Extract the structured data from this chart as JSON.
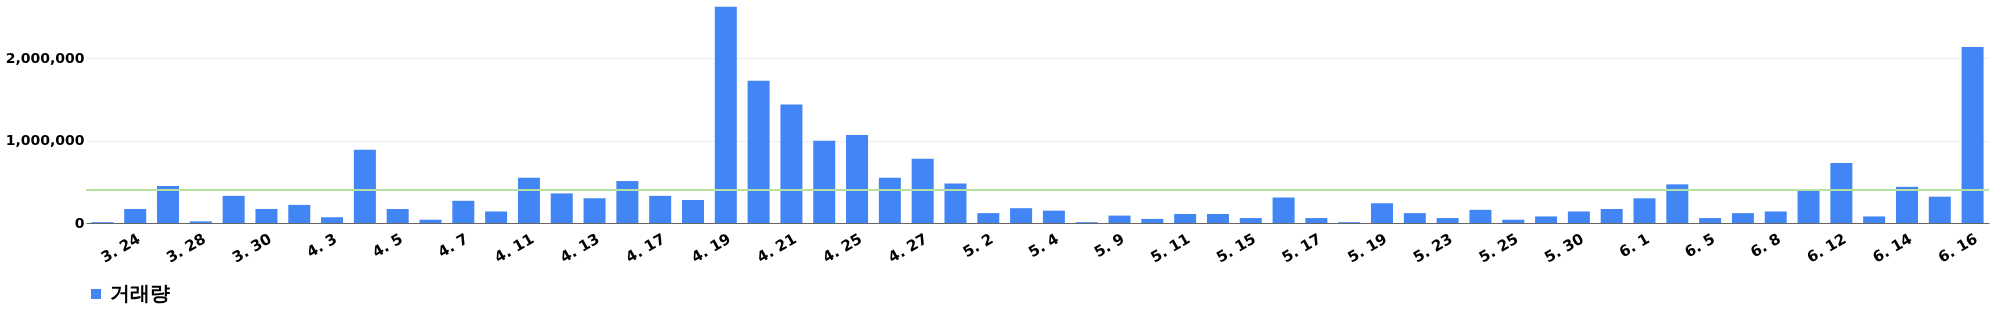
{
  "chart_data": {
    "type": "bar",
    "categories": [
      null,
      "3. 24",
      null,
      "3. 28",
      null,
      "3. 30",
      null,
      "4. 3",
      null,
      "4. 5",
      null,
      "4. 7",
      null,
      "4. 11",
      null,
      "4. 13",
      null,
      "4. 17",
      null,
      "4. 19",
      null,
      "4. 21",
      null,
      "4. 25",
      null,
      "4. 27",
      null,
      "5. 2",
      null,
      "5. 4",
      null,
      "5. 9",
      null,
      "5. 11",
      null,
      "5. 15",
      null,
      "5. 17",
      null,
      "5. 19",
      null,
      "5. 23",
      null,
      "5. 25",
      null,
      "5. 30",
      null,
      "6. 1",
      null,
      "6. 5",
      null,
      "6. 8",
      null,
      "6. 12",
      null,
      "6. 14",
      null,
      "6. 16"
    ],
    "series": [
      {
        "name": "거래량",
        "color": "#4285f4",
        "values": [
          10000,
          170000,
          450000,
          20000,
          330000,
          170000,
          220000,
          70000,
          890000,
          170000,
          40000,
          270000,
          140000,
          550000,
          360000,
          300000,
          510000,
          330000,
          280000,
          2630000,
          1730000,
          1440000,
          1000000,
          1070000,
          550000,
          780000,
          480000,
          120000,
          180000,
          150000,
          10000,
          90000,
          50000,
          110000,
          110000,
          60000,
          310000,
          60000,
          10000,
          240000,
          120000,
          60000,
          160000,
          40000,
          80000,
          140000,
          170000,
          300000,
          470000,
          60000,
          120000,
          140000,
          390000,
          730000,
          80000,
          440000,
          320000,
          2140000
        ]
      }
    ],
    "ylim": [
      0,
      2650000
    ],
    "yticks": [
      {
        "value": 0,
        "label": "0"
      },
      {
        "value": 1000000,
        "label": "1,000,000"
      },
      {
        "value": 2000000,
        "label": "2,000,000"
      }
    ],
    "grid": "y",
    "legend": "bottom",
    "ref_lines": [
      {
        "axis": "y",
        "value": 400000,
        "color": "#b7e1a1"
      }
    ]
  }
}
